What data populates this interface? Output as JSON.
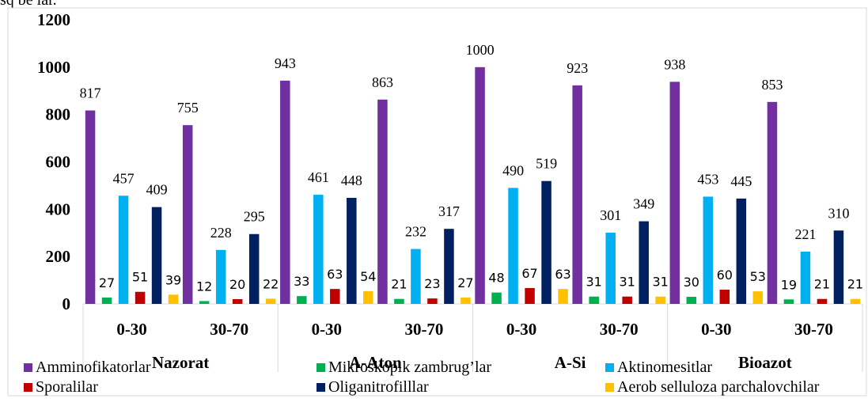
{
  "header": {
    "cut_text": "sq be lar."
  },
  "chart_data": {
    "type": "bar",
    "title": "",
    "xlabel": "",
    "ylabel": "",
    "ylim": [
      0,
      1200
    ],
    "yticks": [
      "0",
      "200",
      "400",
      "600",
      "800",
      "1000",
      "1200"
    ],
    "grid": false,
    "legend_position": "bottom",
    "groups": [
      "Nazorat",
      "A-Aton",
      "A-Si",
      "Bioazot"
    ],
    "categories": [
      "0-30",
      "30-70",
      "0-30",
      "30-70",
      "0-30",
      "30-70",
      "0-30",
      "30-70"
    ],
    "series": [
      {
        "name": "Amminofikatorlar",
        "color": "#7030a0",
        "values": [
          817,
          755,
          943,
          863,
          1000,
          923,
          938,
          853
        ],
        "labels": [
          "817",
          "755",
          "943",
          "863",
          "1000",
          "923",
          "938",
          "853"
        ]
      },
      {
        "name": "Mikroskopik zambrug’lar",
        "color": "#00b050",
        "values": [
          27,
          12,
          33,
          21,
          48,
          31,
          30,
          19
        ],
        "labels": [
          "27",
          "12",
          "33",
          "21",
          "48",
          "31",
          "30",
          "19"
        ]
      },
      {
        "name": "Aktinomesitlar",
        "color": "#00b0f0",
        "values": [
          457,
          228,
          461,
          232,
          490,
          301,
          453,
          221
        ],
        "labels": [
          "457",
          "228",
          "461",
          "232",
          "490",
          "301",
          "453",
          "221"
        ]
      },
      {
        "name": "Sporalilar",
        "color": "#c00000",
        "values": [
          51,
          20,
          63,
          23,
          67,
          31,
          60,
          21
        ],
        "labels": [
          "51",
          "20",
          "63",
          "23",
          "67",
          "31",
          "60",
          "21"
        ]
      },
      {
        "name": "Oliganitrofilllar",
        "color": "#002060",
        "values": [
          409,
          295,
          448,
          317,
          519,
          349,
          445,
          310
        ],
        "labels": [
          "409",
          "295",
          "448",
          "317",
          "519",
          "349",
          "445",
          "310"
        ]
      },
      {
        "name": "Aerob selluloza parchalovchilar",
        "color": "#ffc000",
        "values": [
          39,
          22,
          54,
          27,
          63,
          31,
          53,
          21
        ],
        "labels": [
          "39",
          "22",
          "54",
          "27",
          "63",
          "31",
          "53",
          "21"
        ]
      }
    ]
  }
}
